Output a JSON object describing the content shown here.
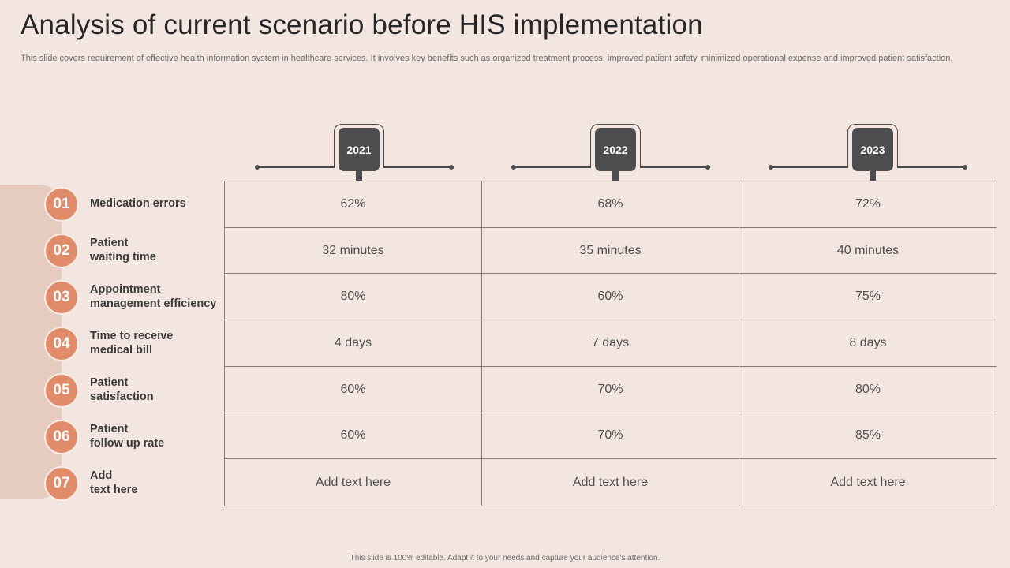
{
  "slide": {
    "title": "Analysis of current scenario before HIS implementation",
    "subtitle": "This slide covers requirement of effective health information system in healthcare services. It involves key benefits such as organized treatment process, improved patient safety, minimized operational expense and improved patient satisfaction.",
    "footer": "This slide is 100% editable. Adapt it to your needs and capture your audience's attention."
  },
  "years": [
    "2021",
    "2022",
    "2023"
  ],
  "rows": [
    {
      "num": "01",
      "label": "Medication errors",
      "values": [
        "62%",
        "68%",
        "72%"
      ]
    },
    {
      "num": "02",
      "label": "Patient\nwaiting time",
      "values": [
        "32 minutes",
        "35 minutes",
        "40 minutes"
      ]
    },
    {
      "num": "03",
      "label": "Appointment\nmanagement efficiency",
      "values": [
        "80%",
        "60%",
        "75%"
      ]
    },
    {
      "num": "04",
      "label": "Time to receive\nmedical bill",
      "values": [
        "4 days",
        "7 days",
        "8 days"
      ]
    },
    {
      "num": "05",
      "label": "Patient\nsatisfaction",
      "values": [
        "60%",
        "70%",
        "80%"
      ]
    },
    {
      "num": "06",
      "label": "Patient\nfollow up rate",
      "values": [
        "60%",
        "70%",
        "85%"
      ]
    },
    {
      "num": "07",
      "label": "Add\ntext here",
      "values": [
        "Add text here",
        "Add text here",
        "Add text here"
      ]
    }
  ],
  "colors": {
    "background": "#f3e6e0",
    "accent": "#e08b6a",
    "badge": "#4d4d4f",
    "band": "#e6cbbf"
  }
}
